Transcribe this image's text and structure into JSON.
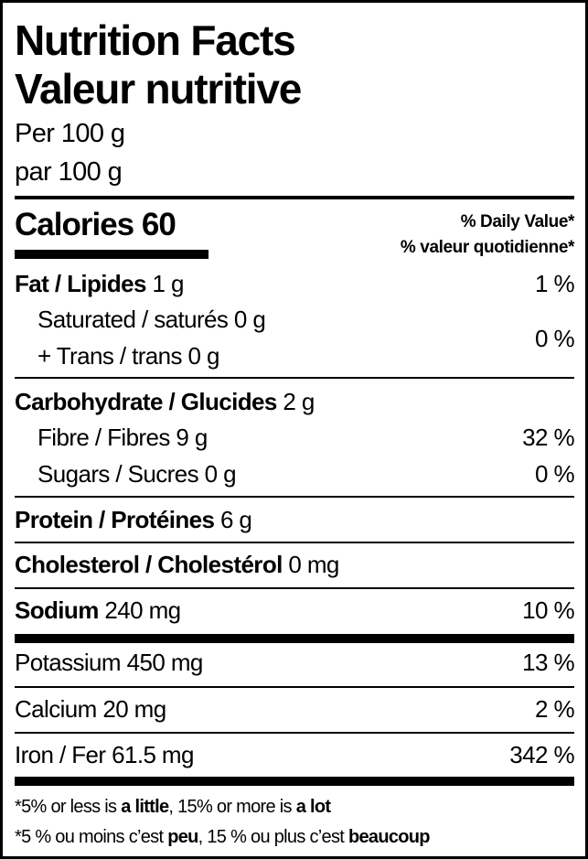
{
  "title_en": "Nutrition Facts",
  "title_fr": "Valeur nutritive",
  "serving_en": "Per 100 g",
  "serving_fr": "par 100 g",
  "calories": {
    "label": "Calories",
    "value": "60"
  },
  "dv_header_en": "% Daily Value*",
  "dv_header_fr": "% valeur quotidienne*",
  "nutrients": {
    "fat": {
      "label": "Fat / Lipides",
      "amount": "1 g",
      "dv": "1 %"
    },
    "saturated": {
      "label": "Saturated / saturés",
      "amount": "0 g"
    },
    "trans": {
      "label": "+ Trans / trans",
      "amount": "0 g"
    },
    "sat_trans_dv": "0 %",
    "carbohydrate": {
      "label": "Carbohydrate / Glucides",
      "amount": "2 g"
    },
    "fibre": {
      "label": "Fibre / Fibres",
      "amount": "9 g",
      "dv": "32 %"
    },
    "sugars": {
      "label": "Sugars / Sucres",
      "amount": "0 g",
      "dv": "0 %"
    },
    "protein": {
      "label": "Protein / Protéines",
      "amount": "6 g"
    },
    "cholesterol": {
      "label": "Cholesterol / Cholestérol",
      "amount": "0 mg"
    },
    "sodium": {
      "label": "Sodium",
      "amount": "240 mg",
      "dv": "10 %"
    },
    "potassium": {
      "label": "Potassium",
      "amount": "450 mg",
      "dv": "13 %"
    },
    "calcium": {
      "label": "Calcium",
      "amount": "20 mg",
      "dv": "2 %"
    },
    "iron": {
      "label": "Iron / Fer",
      "amount": "61.5 mg",
      "dv": "342 %"
    }
  },
  "footnote_en": {
    "p1": "*5% or less is ",
    "b1": "a little",
    ",p2": "",
    "p2": ", 15% or more is ",
    "b2": "a lot"
  },
  "footnote_fr": {
    "p1": "*5 % ou moins c’est ",
    "b1": "peu",
    "p2": ", 15 % ou plus c’est ",
    "b2": "beaucoup"
  }
}
